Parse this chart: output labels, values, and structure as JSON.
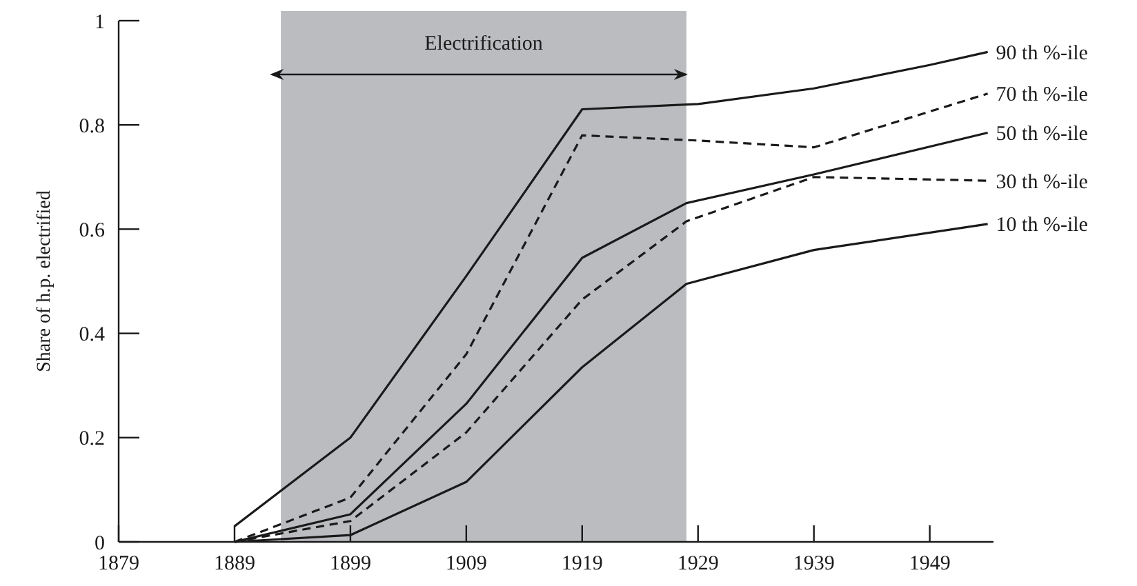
{
  "chart_data": {
    "type": "line",
    "xlabel": null,
    "ylabel": "Share of h.p. electrified",
    "x": [
      1889,
      1899,
      1909,
      1919,
      1928,
      1939,
      1954
    ],
    "series": [
      {
        "name": "90 th %-ile",
        "color": "#1a1a1a",
        "line_style": "solid",
        "x": [
          1889,
          1899,
          1909,
          1919,
          1929,
          1939,
          1949,
          1954
        ],
        "values": [
          0.03,
          0.2,
          0.51,
          0.83,
          0.84,
          0.87,
          0.915,
          0.94
        ]
      },
      {
        "name": "70 th %-ile",
        "color": "#1a1a1a",
        "line_style": "dashed",
        "x": [
          1889,
          1899,
          1909,
          1919,
          1929,
          1939,
          1954
        ],
        "values": [
          0,
          0.085,
          0.36,
          0.78,
          0.77,
          0.757,
          0.86
        ]
      },
      {
        "name": "50 th %-ile",
        "color": "#1a1a1a",
        "line_style": "solid",
        "values": [
          0,
          0.053,
          0.265,
          0.545,
          0.65,
          0.705,
          0.785
        ]
      },
      {
        "name": "30 th %-ile",
        "color": "#1a1a1a",
        "line_style": "dashed",
        "values": [
          0,
          0.04,
          0.21,
          0.465,
          0.615,
          0.7,
          0.693
        ]
      },
      {
        "name": "10 th %-ile",
        "color": "#1a1a1a",
        "line_style": "solid",
        "values": [
          0,
          0.013,
          0.115,
          0.335,
          0.495,
          0.56,
          0.61
        ]
      }
    ],
    "xlim": [
      1879,
      1954.5
    ],
    "xticks": [
      1879,
      1889,
      1899,
      1909,
      1919,
      1929,
      1939,
      1949
    ],
    "ylim": [
      0,
      1
    ],
    "yticks": [
      0,
      0.2,
      0.4,
      0.6,
      0.8,
      1
    ],
    "bands": [
      {
        "axis": "x",
        "from": 1893,
        "to": 1928,
        "label": "Electrification",
        "color": "#bbbcc0"
      }
    ],
    "grid": false,
    "marker": "none"
  }
}
